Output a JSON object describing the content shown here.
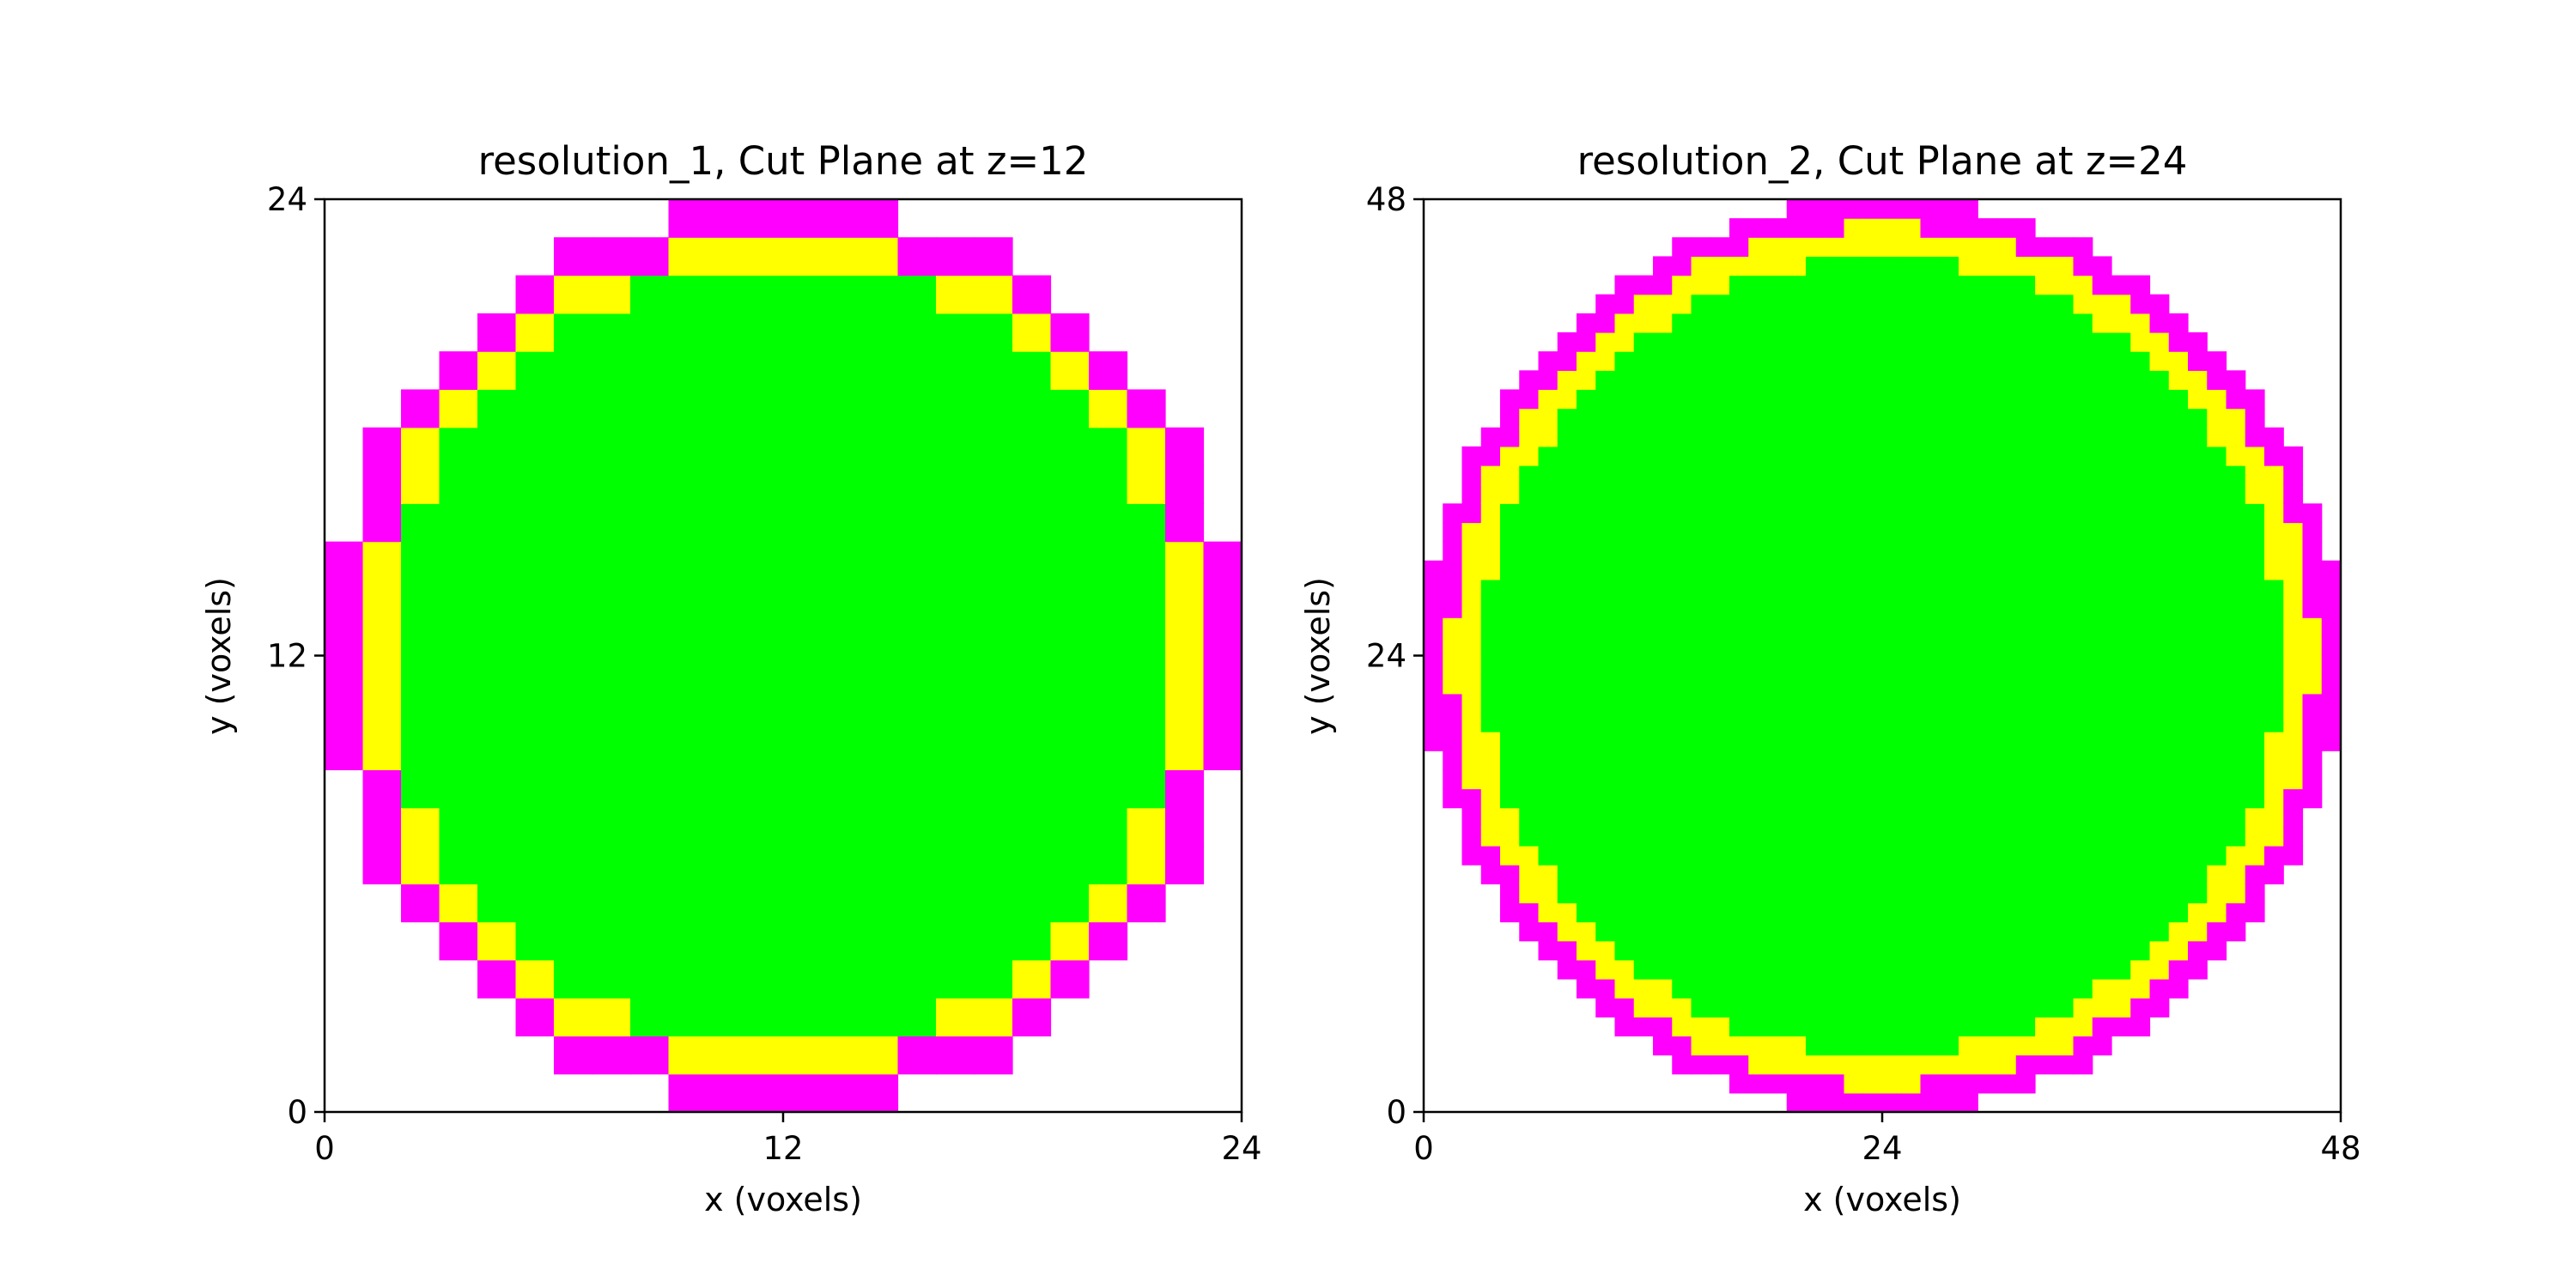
{
  "chart_data": [
    {
      "type": "heatmap",
      "title": "resolution_1, Cut Plane at z=12",
      "xlabel": "x (voxels)",
      "ylabel": "y (voxels)",
      "xlim": [
        0,
        24
      ],
      "ylim": [
        0,
        24
      ],
      "xticks": [
        "0",
        "12",
        "24"
      ],
      "yticks": [
        "0",
        "12",
        "24"
      ],
      "grid": false,
      "grid_size": 24,
      "center": [
        12,
        12
      ],
      "inner_radius": 10.2,
      "mid_radius": 11.0,
      "outer_radius": 12.0,
      "legend": "none"
    },
    {
      "type": "heatmap",
      "title": "resolution_2, Cut Plane at z=24",
      "xlabel": "x (voxels)",
      "ylabel": "y (voxels)",
      "xlim": [
        0,
        48
      ],
      "ylim": [
        0,
        48
      ],
      "xticks": [
        "0",
        "24",
        "48"
      ],
      "yticks": [
        "0",
        "24",
        "48"
      ],
      "grid": false,
      "grid_size": 48,
      "center": [
        24,
        24
      ],
      "inner_radius": 20.9,
      "mid_radius": 22.6,
      "outer_radius": 24.0,
      "legend": "none"
    }
  ],
  "colors": {
    "interior": "#00ff00",
    "boundary": "#ffff00",
    "exterior_shell": "#ff00ff",
    "background": "#ffffff",
    "axis": "#000000"
  }
}
